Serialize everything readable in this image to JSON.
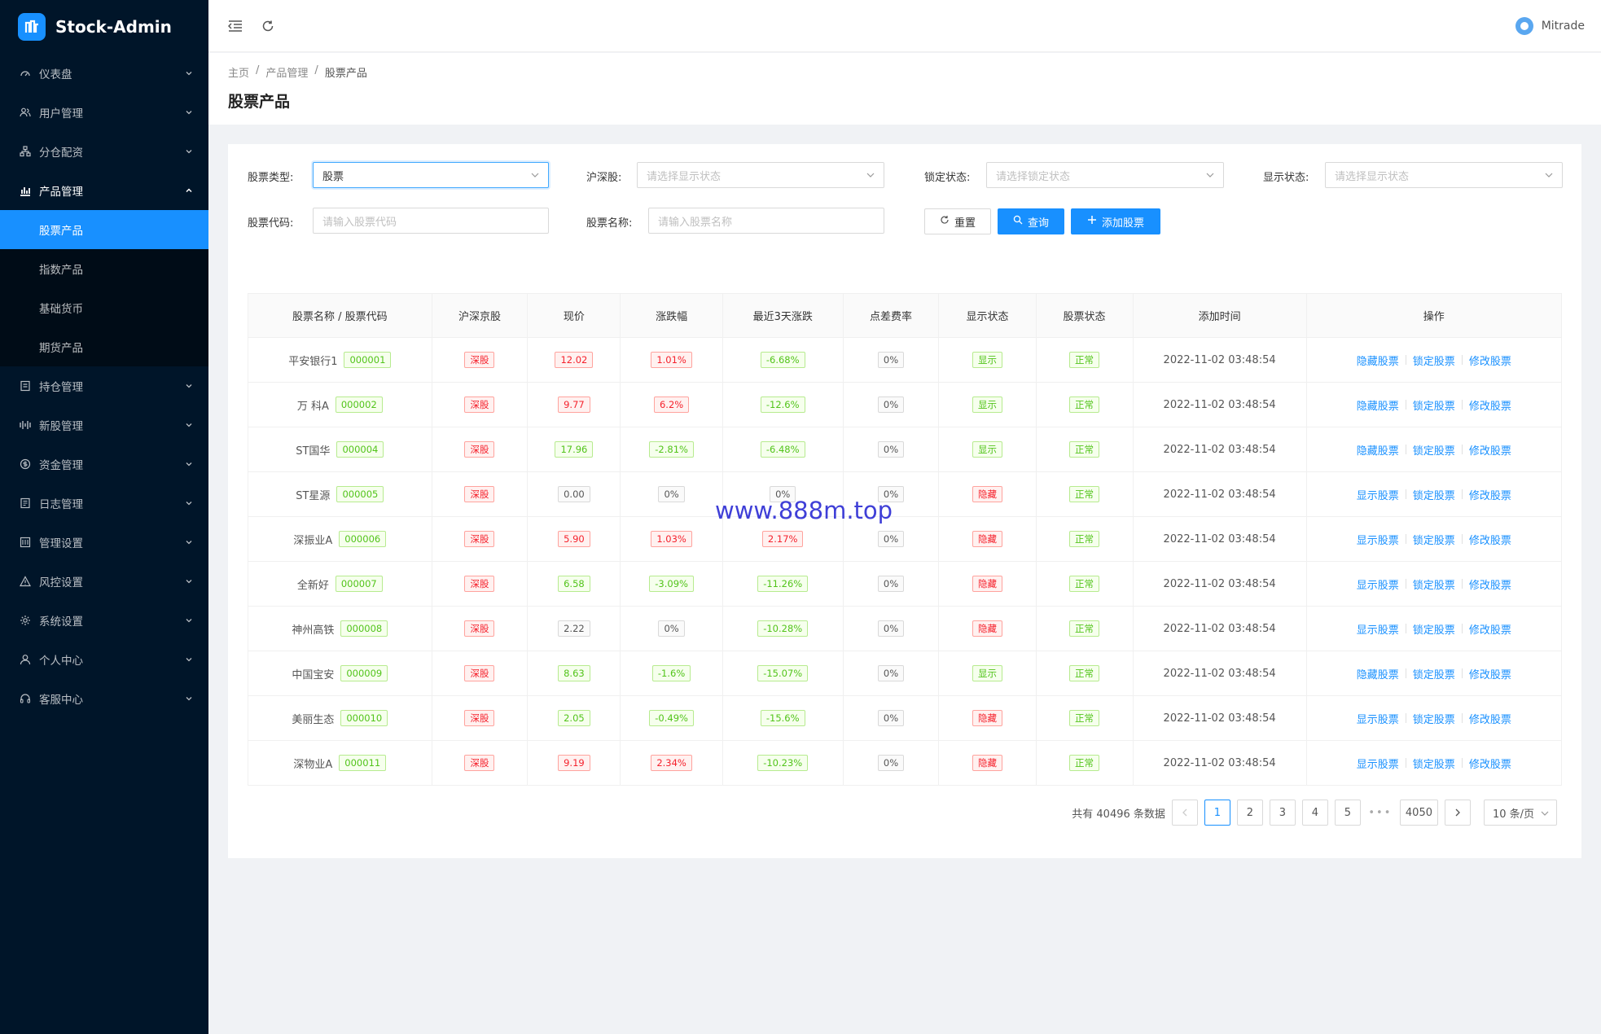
{
  "app": {
    "title": "Stock-Admin"
  },
  "sidebar": {
    "items": [
      {
        "label": "仪表盘",
        "icon": "dashboard-icon"
      },
      {
        "label": "用户管理",
        "icon": "users-icon"
      },
      {
        "label": "分仓配资",
        "icon": "cluster-icon"
      },
      {
        "label": "产品管理",
        "icon": "bar-chart-icon",
        "open": true
      }
    ],
    "product_sub": [
      "股票产品",
      "指数产品",
      "基础货币",
      "期货产品"
    ],
    "items_after": [
      {
        "label": "持仓管理",
        "icon": "position-icon"
      },
      {
        "label": "新股管理",
        "icon": "ipo-icon"
      },
      {
        "label": "资金管理",
        "icon": "money-icon"
      },
      {
        "label": "日志管理",
        "icon": "log-icon"
      },
      {
        "label": "管理设置",
        "icon": "admin-icon"
      },
      {
        "label": "风控设置",
        "icon": "warning-icon"
      },
      {
        "label": "系统设置",
        "icon": "gear-icon"
      },
      {
        "label": "个人中心",
        "icon": "person-icon"
      },
      {
        "label": "客服中心",
        "icon": "headset-icon"
      }
    ]
  },
  "header": {
    "user": "Mitrade"
  },
  "breadcrumb": [
    "主页",
    "产品管理",
    "股票产品"
  ],
  "page": {
    "title": "股票产品"
  },
  "filters": {
    "type_label": "股票类型:",
    "type_value": "股票",
    "hs_label": "沪深股:",
    "hs_placeholder": "请选择显示状态",
    "lock_label": "锁定状态:",
    "lock_placeholder": "请选择锁定状态",
    "show_label": "显示状态:",
    "show_placeholder": "请选择显示状态",
    "code_label": "股票代码:",
    "code_placeholder": "请输入股票代码",
    "name_label": "股票名称:",
    "name_placeholder": "请输入股票名称",
    "reset": "重置",
    "query": "查询",
    "add": "添加股票"
  },
  "table": {
    "headers": [
      "股票名称 / 股票代码",
      "沪深京股",
      "现价",
      "涨跌幅",
      "最近3天涨跌",
      "点差费率",
      "显示状态",
      "股票状态",
      "添加时间",
      "操作"
    ],
    "rows": [
      {
        "name": "平安银行1",
        "code": "000001",
        "market": "深股",
        "price": "12.02",
        "price_c": "red",
        "change": "1.01%",
        "change_c": "red",
        "three": "-6.68%",
        "three_c": "green",
        "spread": "0%",
        "show": "显示",
        "show_c": "green",
        "status": "正常",
        "time": "2022-11-02 03:48:54",
        "op1": "隐藏股票"
      },
      {
        "name": "万 科A",
        "code": "000002",
        "market": "深股",
        "price": "9.77",
        "price_c": "red",
        "change": "6.2%",
        "change_c": "red",
        "three": "-12.6%",
        "three_c": "green",
        "spread": "0%",
        "show": "显示",
        "show_c": "green",
        "status": "正常",
        "time": "2022-11-02 03:48:54",
        "op1": "隐藏股票"
      },
      {
        "name": "ST国华",
        "code": "000004",
        "market": "深股",
        "price": "17.96",
        "price_c": "green",
        "change": "-2.81%",
        "change_c": "green",
        "three": "-6.48%",
        "three_c": "green",
        "spread": "0%",
        "show": "显示",
        "show_c": "green",
        "status": "正常",
        "time": "2022-11-02 03:48:54",
        "op1": "隐藏股票"
      },
      {
        "name": "ST星源",
        "code": "000005",
        "market": "深股",
        "price": "0.00",
        "price_c": "grey",
        "change": "0%",
        "change_c": "grey",
        "three": "0%",
        "three_c": "grey",
        "spread": "0%",
        "show": "隐藏",
        "show_c": "red",
        "status": "正常",
        "time": "2022-11-02 03:48:54",
        "op1": "显示股票"
      },
      {
        "name": "深振业A",
        "code": "000006",
        "market": "深股",
        "price": "5.90",
        "price_c": "red",
        "change": "1.03%",
        "change_c": "red",
        "three": "2.17%",
        "three_c": "red",
        "spread": "0%",
        "show": "隐藏",
        "show_c": "red",
        "status": "正常",
        "time": "2022-11-02 03:48:54",
        "op1": "显示股票"
      },
      {
        "name": "全新好",
        "code": "000007",
        "market": "深股",
        "price": "6.58",
        "price_c": "green",
        "change": "-3.09%",
        "change_c": "green",
        "three": "-11.26%",
        "three_c": "green",
        "spread": "0%",
        "show": "隐藏",
        "show_c": "red",
        "status": "正常",
        "time": "2022-11-02 03:48:54",
        "op1": "显示股票"
      },
      {
        "name": "神州高铁",
        "code": "000008",
        "market": "深股",
        "price": "2.22",
        "price_c": "grey",
        "change": "0%",
        "change_c": "grey",
        "three": "-10.28%",
        "three_c": "green",
        "spread": "0%",
        "show": "隐藏",
        "show_c": "red",
        "status": "正常",
        "time": "2022-11-02 03:48:54",
        "op1": "显示股票"
      },
      {
        "name": "中国宝安",
        "code": "000009",
        "market": "深股",
        "price": "8.63",
        "price_c": "green",
        "change": "-1.6%",
        "change_c": "green",
        "three": "-15.07%",
        "three_c": "green",
        "spread": "0%",
        "show": "显示",
        "show_c": "green",
        "status": "正常",
        "time": "2022-11-02 03:48:54",
        "op1": "隐藏股票"
      },
      {
        "name": "美丽生态",
        "code": "000010",
        "market": "深股",
        "price": "2.05",
        "price_c": "green",
        "change": "-0.49%",
        "change_c": "green",
        "three": "-15.6%",
        "three_c": "green",
        "spread": "0%",
        "show": "隐藏",
        "show_c": "red",
        "status": "正常",
        "time": "2022-11-02 03:48:54",
        "op1": "显示股票"
      },
      {
        "name": "深物业A",
        "code": "000011",
        "market": "深股",
        "price": "9.19",
        "price_c": "red",
        "change": "2.34%",
        "change_c": "red",
        "three": "-10.23%",
        "three_c": "green",
        "spread": "0%",
        "show": "隐藏",
        "show_c": "red",
        "status": "正常",
        "time": "2022-11-02 03:48:54",
        "op1": "显示股票"
      }
    ],
    "op2": "锁定股票",
    "op3": "修改股票"
  },
  "pagination": {
    "total": "共有 40496 条数据",
    "pages": [
      "1",
      "2",
      "3",
      "4",
      "5"
    ],
    "ellipsis": "•••",
    "last": "4050",
    "size": "10 条/页"
  },
  "watermark": "www.888m.top",
  "colors": {
    "sidebar_bg": "#001529",
    "accent": "#1890ff"
  }
}
